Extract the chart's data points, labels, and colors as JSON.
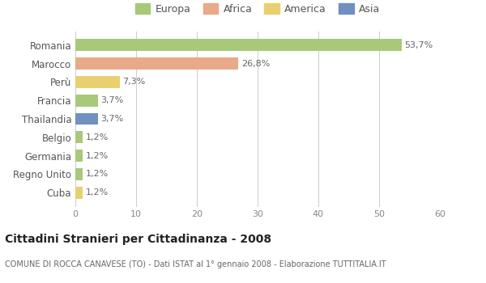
{
  "categories": [
    "Romania",
    "Marocco",
    "Perù",
    "Francia",
    "Thailandia",
    "Belgio",
    "Germania",
    "Regno Unito",
    "Cuba"
  ],
  "values": [
    53.7,
    26.8,
    7.3,
    3.7,
    3.7,
    1.2,
    1.2,
    1.2,
    1.2
  ],
  "labels": [
    "53,7%",
    "26,8%",
    "7,3%",
    "3,7%",
    "3,7%",
    "1,2%",
    "1,2%",
    "1,2%",
    "1,2%"
  ],
  "bar_colors": [
    "#a8c87a",
    "#e8aa88",
    "#e8d070",
    "#a8c87a",
    "#7090bf",
    "#a8c87a",
    "#a8c87a",
    "#a8c87a",
    "#e8d070"
  ],
  "legend_labels": [
    "Europa",
    "Africa",
    "America",
    "Asia"
  ],
  "legend_colors": [
    "#a8c87a",
    "#e8aa88",
    "#e8d070",
    "#7090bf"
  ],
  "title": "Cittadini Stranieri per Cittadinanza - 2008",
  "subtitle": "COMUNE DI ROCCA CANAVESE (TO) - Dati ISTAT al 1° gennaio 2008 - Elaborazione TUTTITALIA.IT",
  "xlim": [
    0,
    60
  ],
  "xticks": [
    0,
    10,
    20,
    30,
    40,
    50,
    60
  ],
  "background_color": "#ffffff",
  "grid_color": "#cccccc"
}
